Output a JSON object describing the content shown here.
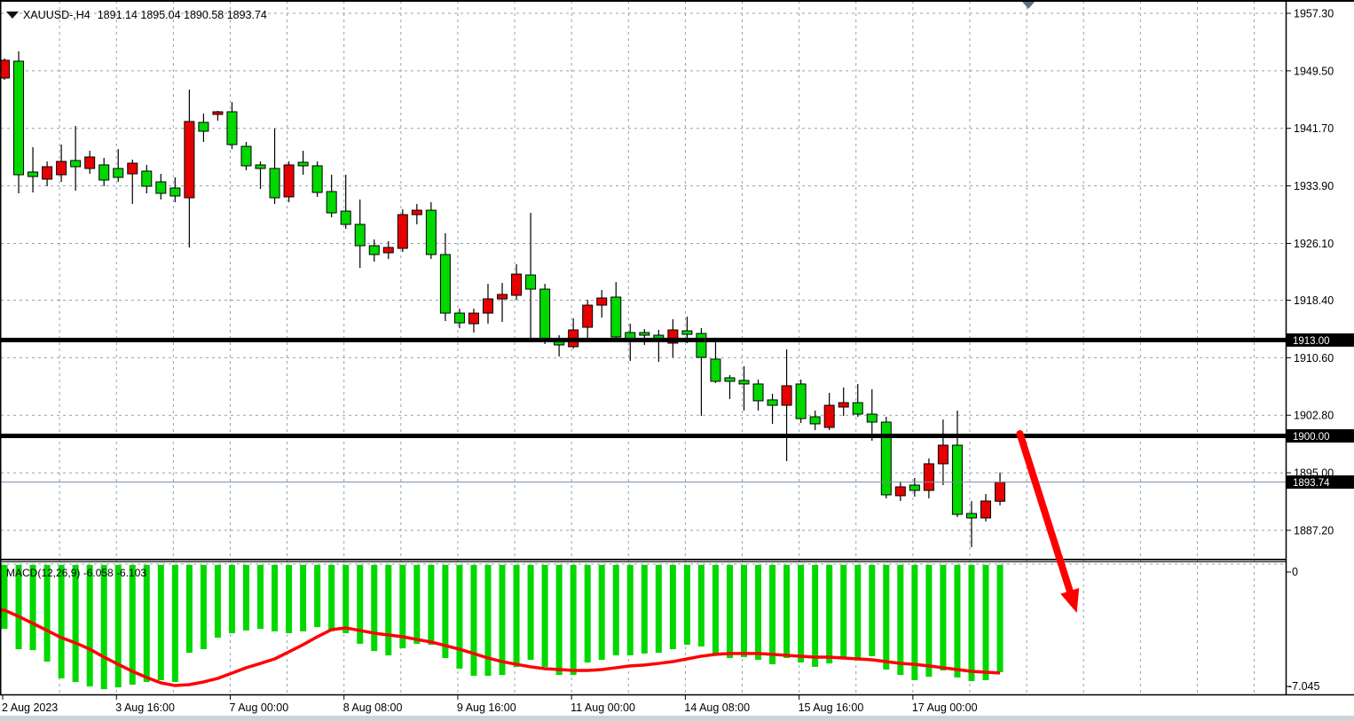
{
  "header": {
    "symbol_tf": "XAUUSD-,H4",
    "ohlc": "1891.14 1895.04 1890.58 1893.74"
  },
  "colors": {
    "background": "#ffffff",
    "grid": "#93a1b1",
    "bull_candle": "#e80000",
    "bear_candle": "#00d800",
    "candle_border": "#000000",
    "level_line": "#000000",
    "current_price_line": "#7a8ca0",
    "badge_bg": "#000000",
    "badge_fg": "#ffffff",
    "macd_histogram": "#00d800",
    "macd_signal": "#ff0000",
    "arrow": "#ff0000",
    "scroll_marker": "#5c7182",
    "bottom_strip": "#ccd3da"
  },
  "chart_data": {
    "type": "candlestick+macd",
    "symbol": "XAUUSD-",
    "timeframe": "H4",
    "current_ohlc": {
      "open": 1891.14,
      "high": 1895.04,
      "low": 1890.58,
      "close": 1893.74
    },
    "price_axis": {
      "ticks": [
        "1957.30",
        "1949.50",
        "1941.70",
        "1933.90",
        "1926.10",
        "1918.40",
        "1910.60",
        "1902.80",
        "1895.00",
        "1887.20"
      ],
      "tick_values": [
        1957.3,
        1949.5,
        1941.7,
        1933.9,
        1926.1,
        1918.4,
        1910.6,
        1902.8,
        1895.0,
        1887.2
      ]
    },
    "time_axis": {
      "labels": [
        {
          "text": "2 Aug 2023",
          "bar": 0
        },
        {
          "text": "3 Aug 16:00",
          "bar": 8
        },
        {
          "text": "7 Aug 00:00",
          "bar": 16
        },
        {
          "text": "8 Aug 08:00",
          "bar": 24
        },
        {
          "text": "9 Aug 16:00",
          "bar": 32
        },
        {
          "text": "11 Aug 00:00",
          "bar": 40
        },
        {
          "text": "14 Aug 08:00",
          "bar": 48
        },
        {
          "text": "15 Aug 16:00",
          "bar": 56
        },
        {
          "text": "17 Aug 00:00",
          "bar": 64
        }
      ]
    },
    "levels": [
      {
        "price": 1913.0,
        "label": "1913.00"
      },
      {
        "price": 1900.0,
        "label": "1900.00"
      }
    ],
    "current_price": {
      "price": 1893.74,
      "label": "1893.74"
    },
    "candles": [
      [
        1948.52,
        1951.17,
        1948.28,
        1950.93
      ],
      [
        1950.81,
        1952.13,
        1932.89,
        1935.41
      ],
      [
        1935.78,
        1939.14,
        1933.01,
        1935.17
      ],
      [
        1934.81,
        1937.22,
        1933.85,
        1936.5
      ],
      [
        1935.41,
        1939.5,
        1934.45,
        1937.22
      ],
      [
        1937.34,
        1942.03,
        1933.25,
        1936.5
      ],
      [
        1936.26,
        1938.66,
        1935.53,
        1937.82
      ],
      [
        1936.74,
        1937.7,
        1933.85,
        1934.69
      ],
      [
        1936.26,
        1938.9,
        1934.45,
        1935.05
      ],
      [
        1935.53,
        1937.46,
        1931.45,
        1936.98
      ],
      [
        1935.9,
        1936.74,
        1932.89,
        1933.85
      ],
      [
        1934.45,
        1935.53,
        1932.05,
        1932.89
      ],
      [
        1933.61,
        1935.05,
        1931.69,
        1932.53
      ],
      [
        1932.29,
        1946.96,
        1925.55,
        1942.63
      ],
      [
        1942.51,
        1943.71,
        1939.86,
        1941.31
      ],
      [
        1943.59,
        1944.07,
        1942.75,
        1943.95
      ],
      [
        1943.95,
        1945.27,
        1938.9,
        1939.5
      ],
      [
        1939.26,
        1939.86,
        1936.02,
        1936.62
      ],
      [
        1936.74,
        1937.22,
        1933.49,
        1936.26
      ],
      [
        1936.26,
        1941.67,
        1931.45,
        1932.29
      ],
      [
        1932.41,
        1937.22,
        1931.69,
        1936.74
      ],
      [
        1937.1,
        1938.66,
        1935.41,
        1936.62
      ],
      [
        1936.62,
        1937.22,
        1932.41,
        1933.01
      ],
      [
        1933.13,
        1935.41,
        1929.64,
        1930.24
      ],
      [
        1930.48,
        1935.41,
        1928.08,
        1928.68
      ],
      [
        1928.68,
        1932.05,
        1922.79,
        1925.79
      ],
      [
        1925.79,
        1926.64,
        1923.63,
        1924.59
      ],
      [
        1924.83,
        1926.4,
        1923.99,
        1925.55
      ],
      [
        1925.43,
        1930.72,
        1924.95,
        1930.0
      ],
      [
        1930.0,
        1931.45,
        1928.68,
        1930.6
      ],
      [
        1930.6,
        1931.69,
        1923.99,
        1924.59
      ],
      [
        1924.59,
        1927.48,
        1915.57,
        1916.65
      ],
      [
        1916.65,
        1917.25,
        1914.61,
        1915.33
      ],
      [
        1915.21,
        1917.25,
        1914.01,
        1916.65
      ],
      [
        1916.65,
        1920.62,
        1915.21,
        1918.58
      ],
      [
        1918.58,
        1920.74,
        1915.45,
        1919.18
      ],
      [
        1919.06,
        1923.27,
        1918.46,
        1921.94
      ],
      [
        1921.82,
        1930.24,
        1913.05,
        1919.9
      ],
      [
        1919.9,
        1920.62,
        1912.45,
        1913.05
      ],
      [
        1913.05,
        1913.65,
        1910.77,
        1912.33
      ],
      [
        1912.09,
        1915.93,
        1911.85,
        1914.37
      ],
      [
        1914.73,
        1918.46,
        1913.05,
        1917.73
      ],
      [
        1917.73,
        1919.78,
        1916.05,
        1918.7
      ],
      [
        1918.82,
        1920.86,
        1912.81,
        1913.41
      ],
      [
        1914.01,
        1915.21,
        1910.17,
        1913.17
      ],
      [
        1914.01,
        1914.49,
        1912.33,
        1913.65
      ],
      [
        1913.65,
        1914.37,
        1910.05,
        1912.81
      ],
      [
        1912.57,
        1915.81,
        1910.65,
        1914.37
      ],
      [
        1914.25,
        1916.17,
        1912.57,
        1913.77
      ],
      [
        1913.89,
        1914.61,
        1902.71,
        1910.65
      ],
      [
        1910.41,
        1912.69,
        1907.16,
        1907.4
      ],
      [
        1907.88,
        1908.24,
        1905.0,
        1907.4
      ],
      [
        1907.52,
        1909.44,
        1903.43,
        1907.04
      ],
      [
        1907.04,
        1907.64,
        1903.43,
        1904.76
      ],
      [
        1904.88,
        1905.72,
        1901.63,
        1904.15
      ],
      [
        1904.15,
        1911.73,
        1896.58,
        1906.8
      ],
      [
        1907.04,
        1907.64,
        1901.75,
        1902.35
      ],
      [
        1902.59,
        1903.43,
        1900.79,
        1901.63
      ],
      [
        1901.15,
        1905.84,
        1900.79,
        1904.15
      ],
      [
        1903.91,
        1906.56,
        1902.71,
        1904.51
      ],
      [
        1904.51,
        1907.04,
        1902.59,
        1902.95
      ],
      [
        1902.95,
        1906.32,
        1899.35,
        1901.87
      ],
      [
        1901.87,
        1902.59,
        1891.53,
        1892.01
      ],
      [
        1891.89,
        1893.81,
        1891.17,
        1893.09
      ],
      [
        1893.33,
        1894.29,
        1891.77,
        1892.61
      ],
      [
        1892.61,
        1896.94,
        1891.53,
        1896.22
      ],
      [
        1896.22,
        1902.23,
        1893.33,
        1898.74
      ],
      [
        1898.74,
        1903.43,
        1889.0,
        1889.36
      ],
      [
        1889.48,
        1891.17,
        1884.91,
        1888.88
      ],
      [
        1888.88,
        1892.13,
        1888.4,
        1891.17
      ],
      [
        1891.14,
        1895.04,
        1890.58,
        1893.74
      ]
    ],
    "macd": {
      "label": "MACD(12,26,9) -6.058 -6.103",
      "name": "MACD(12,26,9)",
      "macd_value": "-6.058",
      "signal_value": "-6.103",
      "axis": {
        "zero_label": "0",
        "min_label": "-7.045",
        "min": -7.045
      },
      "histogram": [
        -3.65,
        -4.78,
        -4.83,
        -5.47,
        -6.4,
        -6.6,
        -6.85,
        -7.0,
        -6.9,
        -6.75,
        -6.6,
        -6.5,
        -6.6,
        -4.98,
        -4.78,
        -4.14,
        -3.89,
        -3.74,
        -3.65,
        -3.79,
        -3.89,
        -3.79,
        -3.55,
        -3.79,
        -3.89,
        -4.48,
        -4.88,
        -5.12,
        -4.73,
        -4.48,
        -4.53,
        -5.27,
        -5.86,
        -6.26,
        -6.26,
        -6.21,
        -5.76,
        -5.37,
        -5.76,
        -6.21,
        -6.21,
        -5.52,
        -5.37,
        -5.12,
        -5.12,
        -5.02,
        -4.98,
        -4.78,
        -4.53,
        -4.63,
        -5.12,
        -5.27,
        -5.22,
        -5.37,
        -5.62,
        -5.27,
        -5.52,
        -5.76,
        -5.57,
        -5.27,
        -5.27,
        -5.17,
        -5.91,
        -6.21,
        -6.5,
        -6.31,
        -5.96,
        -6.35,
        -6.55,
        -6.5,
        -6.058
      ],
      "signal": [
        -2.61,
        -2.96,
        -3.35,
        -3.74,
        -4.14,
        -4.43,
        -4.78,
        -5.22,
        -5.62,
        -6.01,
        -6.35,
        -6.65,
        -6.8,
        -6.75,
        -6.6,
        -6.4,
        -6.11,
        -5.81,
        -5.57,
        -5.32,
        -4.93,
        -4.53,
        -4.09,
        -3.69,
        -3.6,
        -3.74,
        -3.89,
        -3.99,
        -4.09,
        -4.24,
        -4.38,
        -4.58,
        -4.78,
        -5.02,
        -5.27,
        -5.47,
        -5.62,
        -5.76,
        -5.86,
        -5.91,
        -5.96,
        -5.96,
        -5.91,
        -5.81,
        -5.71,
        -5.66,
        -5.57,
        -5.47,
        -5.32,
        -5.17,
        -5.07,
        -5.02,
        -5.02,
        -5.02,
        -5.07,
        -5.12,
        -5.17,
        -5.22,
        -5.22,
        -5.27,
        -5.32,
        -5.37,
        -5.47,
        -5.57,
        -5.62,
        -5.71,
        -5.81,
        -5.91,
        -6.01,
        -6.06,
        -6.103
      ]
    },
    "annotations": {
      "arrow": {
        "from_bar": 71.4,
        "from_price": 1900.3,
        "to_bar": 75.4,
        "to_price": 1876.0
      },
      "scroll_marker_bar": 72
    }
  }
}
